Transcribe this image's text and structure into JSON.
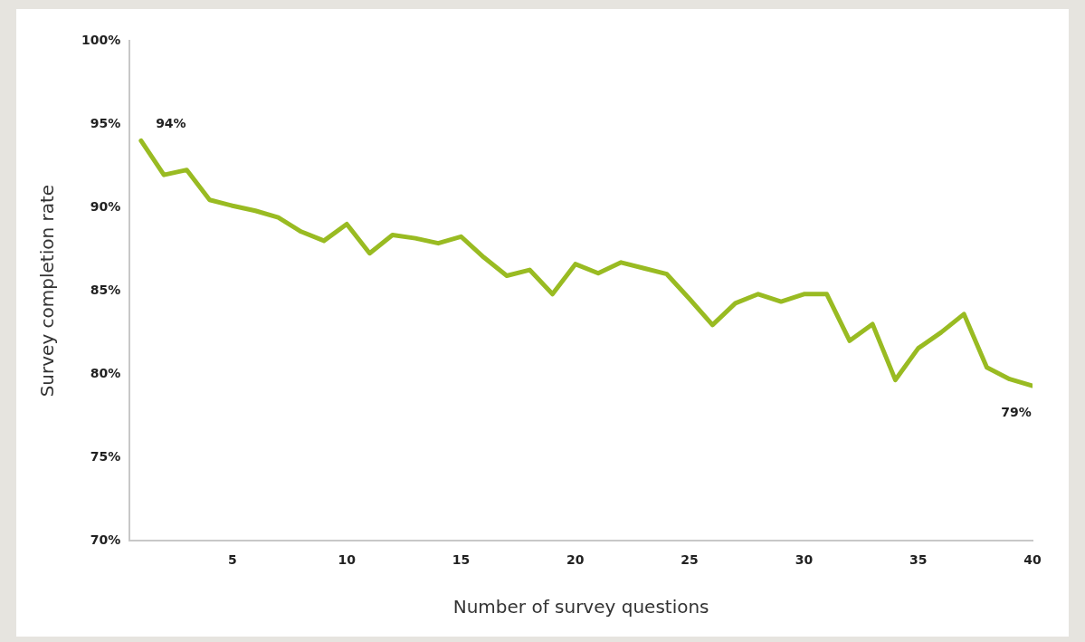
{
  "chart_data": {
    "type": "line",
    "xlabel": "Number of survey questions",
    "ylabel": "Survey completion rate",
    "x": [
      1,
      2,
      3,
      4,
      5,
      6,
      7,
      8,
      9,
      10,
      11,
      12,
      13,
      14,
      15,
      16,
      17,
      18,
      19,
      20,
      21,
      22,
      23,
      24,
      25,
      26,
      27,
      28,
      29,
      30,
      31,
      32,
      33,
      34,
      35,
      36,
      37,
      38,
      39,
      40
    ],
    "series": [
      {
        "color": "#99bb22",
        "values": [
          94.0,
          91.95,
          92.25,
          90.45,
          90.1,
          89.8,
          89.4,
          88.55,
          88.0,
          89.0,
          87.25,
          88.35,
          88.15,
          87.85,
          88.25,
          87.0,
          85.9,
          86.25,
          84.8,
          86.6,
          86.05,
          86.7,
          86.35,
          86.0,
          84.5,
          82.95,
          84.25,
          84.8,
          84.35,
          84.8,
          84.8,
          82.0,
          83.0,
          79.65,
          81.55,
          82.5,
          83.6,
          80.4,
          79.7,
          79.3
        ]
      }
    ],
    "xlim": [
      0.5,
      40
    ],
    "xticks": [
      5,
      10,
      15,
      20,
      25,
      30,
      35,
      40
    ],
    "ylim": [
      70,
      100
    ],
    "yticks": [
      {
        "value": 70,
        "label": "70%"
      },
      {
        "value": 75,
        "label": "75%"
      },
      {
        "value": 80,
        "label": "80%"
      },
      {
        "value": 85,
        "label": "85%"
      },
      {
        "value": 90,
        "label": "90%"
      },
      {
        "value": 95,
        "label": "95%"
      },
      {
        "value": 100,
        "label": "100%"
      }
    ],
    "annotations": [
      {
        "text": "94%",
        "x": 1,
        "y": 94.0
      },
      {
        "text": "79%",
        "x": 40,
        "y": 79.3
      }
    ],
    "grid": false,
    "legend": false,
    "marker": "none",
    "line_style": "solid"
  }
}
